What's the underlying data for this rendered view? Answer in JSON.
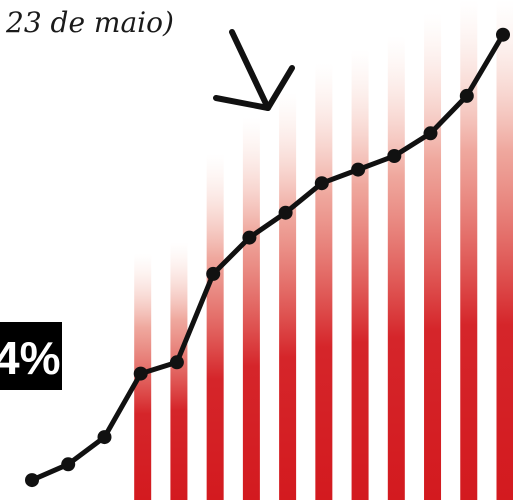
{
  "chart_data": {
    "type": "line",
    "caption": "23 de maio)",
    "percent_label": "4%",
    "x": [
      1,
      2,
      3,
      4,
      5,
      6,
      7,
      8,
      9,
      10,
      11,
      12,
      13,
      14
    ],
    "values": [
      14,
      28,
      52,
      108,
      118,
      196,
      228,
      250,
      276,
      288,
      300,
      320,
      353,
      407
    ],
    "ylim": [
      0,
      420
    ],
    "grid": false,
    "bar_color": "#d31a1f",
    "line_color": "#111111",
    "label_bg": "#000000",
    "arrow_icon": "down-arrow-icon"
  }
}
